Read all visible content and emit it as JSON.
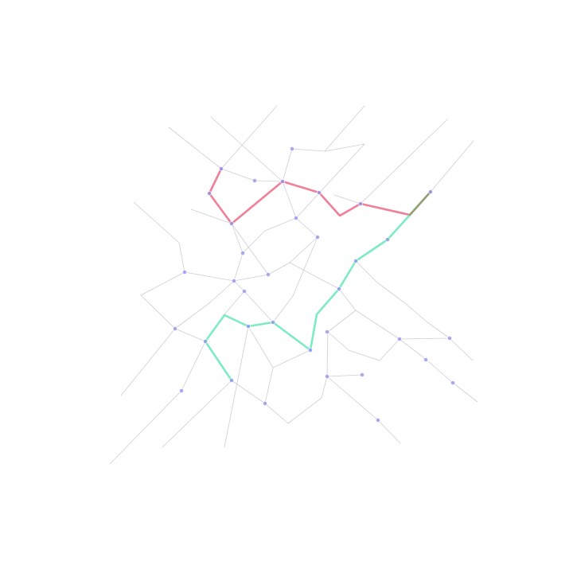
{
  "map": {
    "colors": {
      "background": "#ffffff",
      "road": "#c8c8d4",
      "node": "#8f8ff0",
      "route_red": "#f07f98",
      "route_green": "#7debc4",
      "route_overlap": "#8fa070"
    },
    "node_count": 34,
    "road_count": 60,
    "routes": [
      {
        "id": "red",
        "color_key": "route_red"
      },
      {
        "id": "green",
        "color_key": "route_green"
      },
      {
        "id": "overlap",
        "color_key": "route_overlap"
      }
    ]
  }
}
